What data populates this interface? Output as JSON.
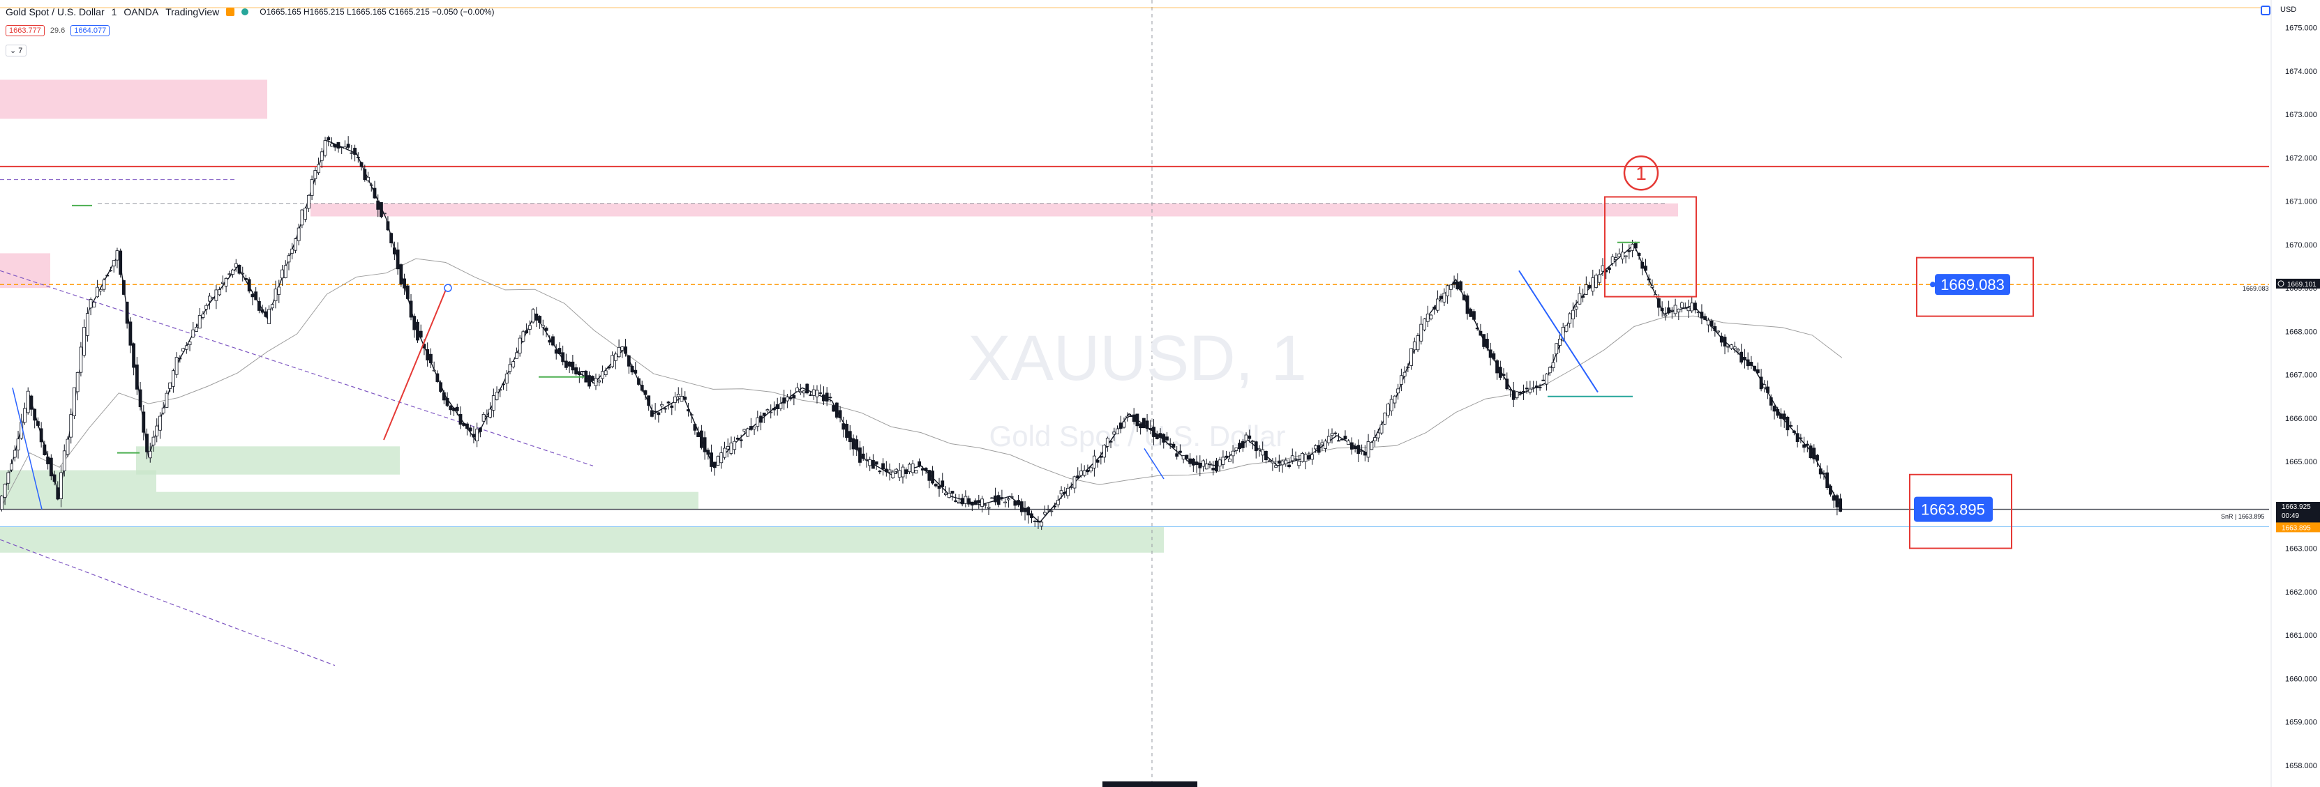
{
  "header": {
    "symbol": "Gold Spot / U.S. Dollar",
    "interval": "1",
    "broker": "OANDA",
    "platform": "TradingView",
    "ohlc": "O1665.165  H1665.215  L1665.165  C1665.215  −0.050 (−0.00%)"
  },
  "quote": {
    "sell": "1663.777",
    "spread": "29.6",
    "buy": "1664.077"
  },
  "indicators_toggle": "7",
  "currency": "USD",
  "watermark": {
    "ticker": "XAUUSD, 1",
    "name": "Gold Spot / U.S. Dollar"
  },
  "chart_data": {
    "type": "line",
    "ylim": [
      1657,
      1676
    ],
    "y_ticks": [
      1658,
      1659,
      1660,
      1661,
      1662,
      1663,
      1664,
      1665,
      1666,
      1667,
      1668,
      1669,
      1670,
      1671,
      1672,
      1673,
      1674,
      1675
    ],
    "series": [
      {
        "values": [
          1663.9,
          1666.5,
          1664.2,
          1668.5,
          1669.8,
          1665.1,
          1667.3,
          1668.6,
          1669.5,
          1668.3,
          1670.2,
          1672.4,
          1672.1,
          1670.6,
          1668.1,
          1666.5,
          1665.5,
          1666.9,
          1668.4,
          1667.3,
          1666.8,
          1667.6,
          1666.1,
          1666.5,
          1664.9,
          1665.6,
          1666.2,
          1666.7,
          1666.4,
          1665.1,
          1664.7,
          1664.9,
          1664.2,
          1664.0,
          1664.2,
          1663.6,
          1664.4,
          1665.1,
          1666.1,
          1665.6,
          1665.0,
          1664.9,
          1665.5,
          1664.9,
          1665.1,
          1665.6,
          1665.2,
          1666.5,
          1668.3,
          1669.2,
          1667.7,
          1666.5,
          1666.8,
          1668.6,
          1669.4,
          1670.0,
          1668.4,
          1668.6,
          1667.8,
          1667.2,
          1666.0,
          1665.2,
          1663.9
        ]
      }
    ],
    "annotations": {
      "support_price": "1663.895",
      "resistance_price": "1669.083",
      "line_label_right": "1669.101",
      "last_price": "1663.925",
      "countdown": "00:49",
      "bid_price": "1663.895",
      "sr_label": "SnR | 1663.895",
      "resistance_label_small": "1669.083",
      "circled_marker": "1"
    }
  }
}
